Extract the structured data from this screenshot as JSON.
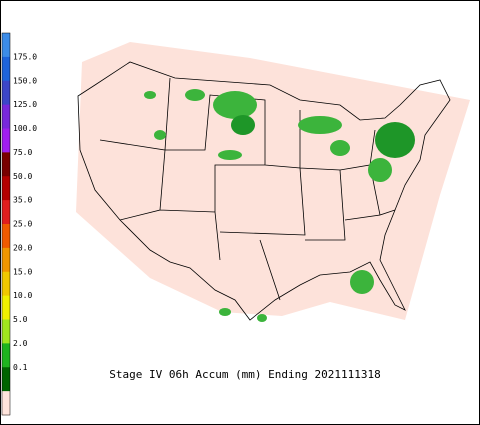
{
  "title": "Stage IV 06h Accum (mm) Ending 2021111318",
  "legend": {
    "labels": [
      "175.0",
      "150.0",
      "125.0",
      "100.0",
      "75.0",
      "50.0",
      "35.0",
      "25.0",
      "20.0",
      "15.0",
      "10.0",
      "5.0",
      "2.0",
      "0.1"
    ],
    "colors": [
      "#3c8ce8",
      "#1e64dc",
      "#3c46c8",
      "#7828dc",
      "#a01ef0",
      "#780000",
      "#b40000",
      "#e01e1e",
      "#f05a00",
      "#f09600",
      "#f0c800",
      "#f0f000",
      "#a0e61e",
      "#1eb41e",
      "#006400",
      "#ffe4dc"
    ]
  }
}
